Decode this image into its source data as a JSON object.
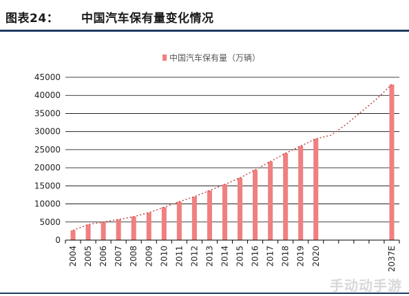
{
  "header": {
    "figure_label": "图表24：",
    "title": "中国汽车保有量变化情况"
  },
  "watermark": "手动动手游",
  "colors": {
    "bar": "#f08080",
    "trend": "#c0504d",
    "grid": "#000000",
    "rule": "#1f3a5f"
  },
  "chart_data": {
    "type": "bar",
    "categories": [
      "2004",
      "2005",
      "2006",
      "2007",
      "2008",
      "2009",
      "2010",
      "2011",
      "2012",
      "2013",
      "2014",
      "2015",
      "2016",
      "2017",
      "2018",
      "2019",
      "2020",
      "",
      "",
      "",
      "",
      "2037E"
    ],
    "series": [
      {
        "name": "中国汽车保有量（万辆）",
        "values": [
          2700,
          4300,
          5000,
          5700,
          6500,
          7600,
          9100,
          10600,
          12000,
          13700,
          15400,
          17200,
          19400,
          21700,
          24000,
          26000,
          28000,
          null,
          null,
          null,
          null,
          43000
        ]
      }
    ],
    "trend_line": {
      "style": "dotted",
      "values": [
        2700,
        4300,
        5000,
        5700,
        6500,
        7600,
        9100,
        10600,
        12000,
        13700,
        15400,
        17200,
        19400,
        21700,
        24000,
        26000,
        28000,
        29000,
        32000,
        35500,
        39000,
        43000
      ]
    },
    "ylim": [
      0,
      45000
    ],
    "yticks": [
      0,
      5000,
      10000,
      15000,
      20000,
      25000,
      30000,
      35000,
      40000,
      45000
    ],
    "grid": true,
    "legend_position": "top-center",
    "xlabel": "",
    "ylabel": ""
  }
}
